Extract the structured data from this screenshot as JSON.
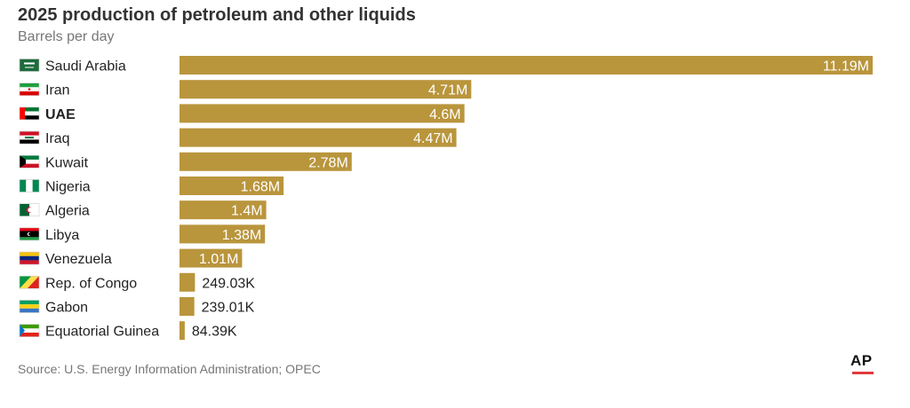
{
  "title": "2025 production of petroleum and other liquids",
  "subtitle": "Barrels per day",
  "source": "Source: U.S. Energy Information Administration; OPEC",
  "logo_text": "AP",
  "colors": {
    "bar": "#b9953c",
    "inside_label": "#ffffff",
    "outside_label": "#222222",
    "logo_accent": "#e03a3e"
  },
  "chart_data": {
    "type": "bar",
    "orientation": "horizontal",
    "title": "2025 production of petroleum and other liquids",
    "subtitle": "Barrels per day",
    "categories": [
      "Saudi Arabia",
      "Iran",
      "UAE",
      "Iraq",
      "Kuwait",
      "Nigeria",
      "Algeria",
      "Libya",
      "Venezuela",
      "Rep. of Congo",
      "Gabon",
      "Equatorial Guinea"
    ],
    "values": [
      11190000,
      4710000,
      4600000,
      4470000,
      2780000,
      1680000,
      1400000,
      1380000,
      1010000,
      249030,
      239010,
      84390
    ],
    "value_labels": [
      "11.19M",
      "4.71M",
      "4.6M",
      "4.47M",
      "2.78M",
      "1.68M",
      "1.4M",
      "1.38M",
      "1.01M",
      "249.03K",
      "239.01K",
      "84.39K"
    ],
    "highlighted": [
      "UAE"
    ],
    "flags": [
      "saudi-arabia-flag-icon",
      "iran-flag-icon",
      "uae-flag-icon",
      "iraq-flag-icon",
      "kuwait-flag-icon",
      "nigeria-flag-icon",
      "algeria-flag-icon",
      "libya-flag-icon",
      "venezuela-flag-icon",
      "congo-flag-icon",
      "gabon-flag-icon",
      "equatorial-guinea-flag-icon"
    ],
    "grid": false,
    "legend": "none"
  }
}
